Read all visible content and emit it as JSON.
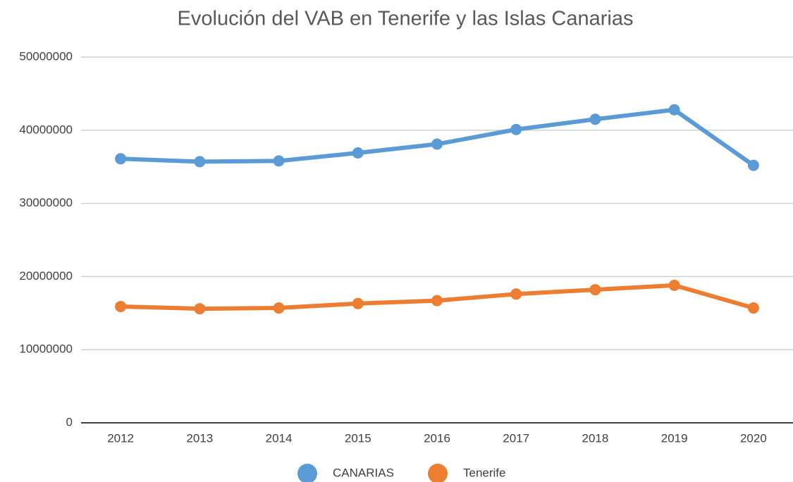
{
  "chart_data": {
    "type": "line",
    "title": "Evolución del VAB en Tenerife y las Islas Canarias",
    "categories": [
      "2012",
      "2013",
      "2014",
      "2015",
      "2016",
      "2017",
      "2018",
      "2019",
      "2020"
    ],
    "series": [
      {
        "name": "CANARIAS",
        "color": "#5b9bd5",
        "values": [
          36100000,
          35700000,
          35800000,
          36900000,
          38100000,
          40100000,
          41500000,
          42800000,
          35200000
        ]
      },
      {
        "name": "Tenerife",
        "color": "#ed7d31",
        "values": [
          15900000,
          15600000,
          15700000,
          16300000,
          16700000,
          17600000,
          18200000,
          18800000,
          15700000
        ]
      }
    ],
    "ylim": [
      0,
      50000000
    ],
    "yticks": [
      0,
      10000000,
      20000000,
      30000000,
      40000000,
      50000000
    ],
    "grid": true,
    "legend": "bottom"
  }
}
